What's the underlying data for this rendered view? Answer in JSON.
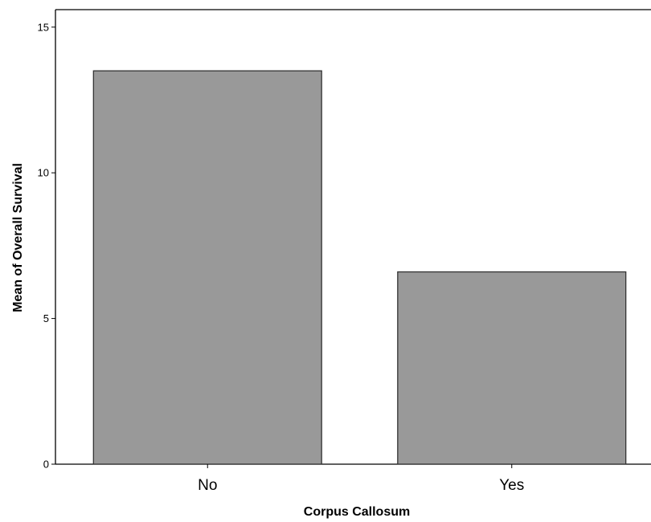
{
  "chart_data": {
    "type": "bar",
    "categories": [
      "No",
      "Yes"
    ],
    "values": [
      13.5,
      6.6
    ],
    "title": "",
    "xlabel": "Corpus Callosum",
    "ylabel": "Mean of Overall Survival",
    "ylim": [
      0,
      15.6
    ],
    "yticks": [
      0,
      5,
      10,
      15
    ],
    "ytick_labels": [
      "0",
      "5",
      "10",
      "15"
    ],
    "grid": false,
    "legend": "none",
    "colors": {
      "bar_fill": "#999999",
      "bar_stroke": "#333333",
      "axis": "#000000",
      "background": "#ffffff"
    }
  }
}
